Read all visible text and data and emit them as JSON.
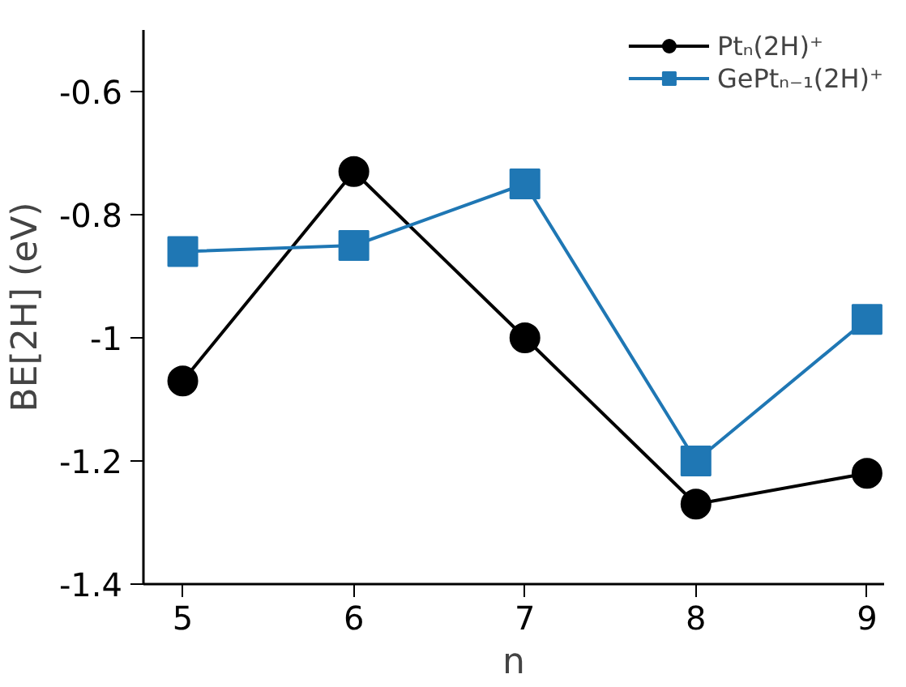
{
  "chart_data": {
    "type": "line",
    "xlabel": "n",
    "ylabel": "BE[2H] (eV)",
    "x": [
      5,
      6,
      7,
      8,
      9
    ],
    "series": [
      {
        "name": "Ptₙ(2H)⁺",
        "color": "#000000",
        "marker": "circle",
        "values": [
          -1.07,
          -0.73,
          -1.0,
          -1.27,
          -1.22
        ]
      },
      {
        "name": "GePtₙ₋₁(2H)⁺",
        "color": "#1f77b4",
        "marker": "square",
        "values": [
          -0.86,
          -0.85,
          -0.75,
          -1.2,
          -0.97
        ]
      }
    ],
    "xlim": [
      4.77,
      9.1
    ],
    "ylim": [
      -1.4,
      -0.5
    ],
    "xticks": [
      5,
      6,
      7,
      8,
      9
    ],
    "yticks": [
      -1.4,
      -1.2,
      -1,
      -0.8,
      -0.6
    ],
    "grid": false,
    "legend": "top right",
    "line_style": "solid"
  }
}
